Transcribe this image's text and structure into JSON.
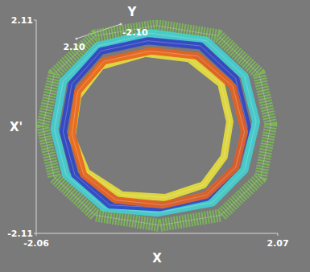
{
  "chart_data": {
    "type": "line",
    "x_label": "X",
    "y_label": "X'",
    "z_label": "Y",
    "xlim": [
      -2.06,
      2.07
    ],
    "xticks": [
      -2.06,
      2.07
    ],
    "ylim": [
      -2.11,
      2.11
    ],
    "yticks": [
      -2.11,
      2.11
    ],
    "zlim": [
      -2.1,
      2.1
    ],
    "zticks": [
      {
        "value": 2.1,
        "label": "2.10"
      },
      {
        "value": -2.1,
        "label": "-2.10"
      }
    ],
    "grid": false,
    "series": [
      {
        "color": "#7ccf4a",
        "marker": "dot",
        "line_style": "solid",
        "x": [
          1.95,
          1.75,
          1.05,
          0.0,
          -1.05,
          -1.75,
          -1.95,
          -1.75,
          -1.05,
          0.05,
          1.1,
          1.78
        ],
        "values": [
          0.05,
          1.05,
          1.8,
          2.0,
          1.8,
          1.05,
          0.0,
          -1.0,
          -1.75,
          -1.95,
          -1.75,
          -1.0
        ]
      },
      {
        "color": "#3fd6d6",
        "marker": "dot",
        "line_style": "solid",
        "x": [
          1.7,
          1.5,
          0.85,
          -0.1,
          -1.0,
          -1.6,
          -1.75,
          -1.55,
          -0.9,
          0.0,
          0.95,
          1.5
        ],
        "values": [
          0.1,
          1.0,
          1.7,
          1.85,
          1.6,
          0.9,
          -0.05,
          -0.95,
          -1.6,
          -1.7,
          -1.5,
          -0.85
        ]
      },
      {
        "color": "#2f45c8",
        "marker": "dot",
        "line_style": "solid",
        "x": [
          1.55,
          1.35,
          0.75,
          -0.15,
          -0.95,
          -1.45,
          -1.6,
          -1.4,
          -0.8,
          0.05,
          0.85,
          1.35
        ],
        "values": [
          0.0,
          0.95,
          1.6,
          1.7,
          1.5,
          0.85,
          -0.1,
          -0.95,
          -1.55,
          -1.6,
          -1.4,
          -0.8
        ]
      },
      {
        "color": "#e8e03a",
        "marker": "dot",
        "line_style": "solid",
        "x": [
          1.25,
          1.1,
          0.55,
          -0.2,
          -0.95,
          -1.35,
          -1.45,
          -1.2,
          -0.6,
          0.15,
          0.8,
          1.15
        ],
        "values": [
          0.1,
          0.85,
          1.35,
          1.45,
          1.2,
          0.6,
          -0.2,
          -0.9,
          -1.35,
          -1.4,
          -1.15,
          -0.6
        ]
      },
      {
        "color": "#e8621e",
        "marker": "dot",
        "line_style": "solid",
        "x": [
          1.5,
          1.3,
          0.7,
          -0.1,
          -0.9,
          -1.35,
          -1.45,
          -1.25,
          -0.7,
          0.1,
          0.85,
          1.35
        ],
        "values": [
          -0.1,
          0.8,
          1.4,
          1.5,
          1.3,
          0.7,
          -0.15,
          -0.95,
          -1.45,
          -1.55,
          -1.35,
          -0.8
        ]
      }
    ]
  }
}
